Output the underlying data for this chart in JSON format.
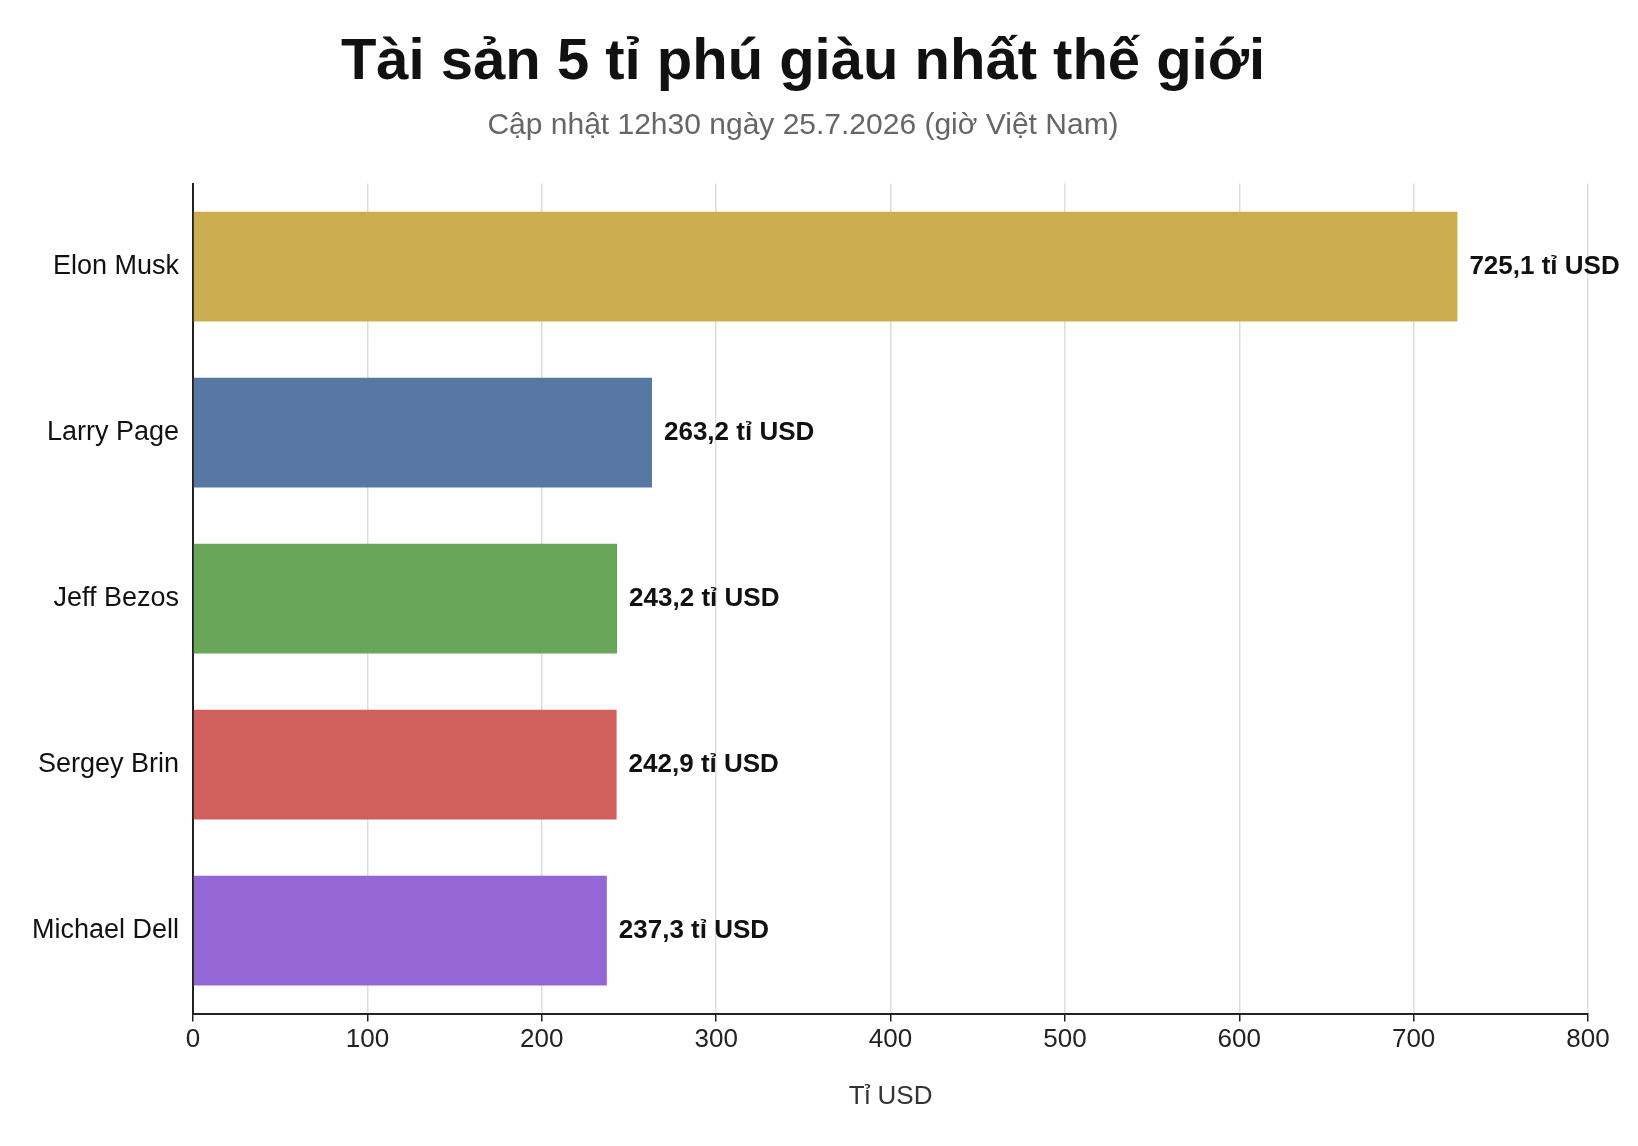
{
  "chart_data": {
    "type": "bar",
    "orientation": "horizontal",
    "title": "Tài sản 5 tỉ phú giàu nhất thế giới",
    "subtitle": "Cập nhật 12h30 ngày 25.7.2026 (giờ Việt Nam)",
    "xlabel": "Tỉ USD",
    "categories": [
      "Elon Musk",
      "Larry Page",
      "Jeff Bezos",
      "Sergey Brin",
      "Michael Dell"
    ],
    "values": [
      725.1,
      263.2,
      243.2,
      242.9,
      237.3
    ],
    "colors": [
      "#ccad50",
      "#5878a4",
      "#6aa65a",
      "#d1605d",
      "#9467d4"
    ],
    "value_labels": [
      "725,1 tỉ USD",
      "263,2 tỉ USD",
      "243,2 tỉ USD",
      "242,9 tỉ USD",
      "237,3 tỉ USD"
    ],
    "xlim": [
      0,
      800
    ],
    "xticks": [
      0,
      100,
      200,
      300,
      400,
      500,
      600,
      700,
      800
    ],
    "grid": "x",
    "legend": false
  }
}
